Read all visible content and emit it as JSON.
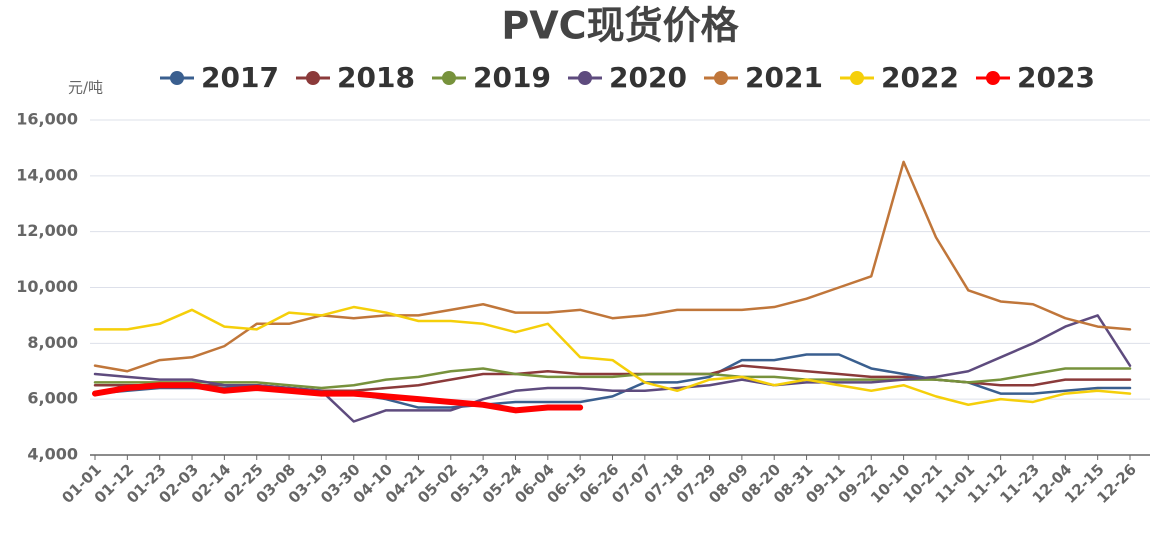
{
  "chart_data": {
    "type": "line",
    "title": "PVC现货价格",
    "y_label": "元/吨",
    "categories": [
      "01-01",
      "01-12",
      "01-23",
      "02-03",
      "02-14",
      "02-25",
      "03-08",
      "03-19",
      "03-30",
      "04-10",
      "04-21",
      "05-02",
      "05-13",
      "05-24",
      "06-04",
      "06-15",
      "06-26",
      "07-07",
      "07-18",
      "07-29",
      "08-09",
      "08-20",
      "08-31",
      "09-11",
      "09-22",
      "10-10",
      "10-21",
      "11-01",
      "11-12",
      "11-23",
      "12-04",
      "12-15",
      "12-26"
    ],
    "series": [
      {
        "name": "2017",
        "color": "#3a5f8f",
        "values": [
          6200,
          6300,
          6400,
          6400,
          6400,
          6500,
          6400,
          6300,
          6200,
          6000,
          5700,
          5700,
          5800,
          5900,
          5900,
          5900,
          6100,
          6600,
          6600,
          6800,
          7400,
          7400,
          7600,
          7600,
          7100,
          6900,
          6700,
          6600,
          6200,
          6200,
          6300,
          6400,
          6400
        ]
      },
      {
        "name": "2018",
        "color": "#8b3a3a",
        "values": [
          6500,
          6500,
          6500,
          6500,
          6500,
          6500,
          6400,
          6300,
          6300,
          6400,
          6500,
          6700,
          6900,
          6900,
          7000,
          6900,
          6900,
          6900,
          6900,
          6900,
          7200,
          7100,
          7000,
          6900,
          6800,
          6800,
          6700,
          6600,
          6500,
          6500,
          6700,
          6700,
          6700
        ]
      },
      {
        "name": "2019",
        "color": "#77923c",
        "values": [
          6600,
          6600,
          6600,
          6600,
          6600,
          6600,
          6500,
          6400,
          6500,
          6700,
          6800,
          7000,
          7100,
          6900,
          6800,
          6800,
          6800,
          6900,
          6900,
          6900,
          6800,
          6800,
          6700,
          6700,
          6700,
          6700,
          6700,
          6600,
          6700,
          6900,
          7100,
          7100,
          7100
        ]
      },
      {
        "name": "2020",
        "color": "#5e4b7e",
        "values": [
          6900,
          6800,
          6700,
          6700,
          6500,
          6500,
          6400,
          6300,
          5200,
          5600,
          5600,
          5600,
          6000,
          6300,
          6400,
          6400,
          6300,
          6300,
          6400,
          6500,
          6700,
          6500,
          6600,
          6600,
          6600,
          6700,
          6800,
          7000,
          7500,
          8000,
          8600,
          9000,
          7200
        ]
      },
      {
        "name": "2021",
        "color": "#c0763a",
        "values": [
          7200,
          7000,
          7400,
          7500,
          7900,
          8700,
          8700,
          9000,
          8900,
          9000,
          9000,
          9200,
          9400,
          9100,
          9100,
          9200,
          8900,
          9000,
          9200,
          9200,
          9200,
          9300,
          9600,
          10000,
          10400,
          14500,
          11800,
          9900,
          9500,
          9400,
          8900,
          8600,
          8500
        ]
      },
      {
        "name": "2022",
        "color": "#f5cf0a",
        "values": [
          8500,
          8500,
          8700,
          9200,
          8600,
          8500,
          9100,
          9000,
          9300,
          9100,
          8800,
          8800,
          8700,
          8400,
          8700,
          7500,
          7400,
          6600,
          6300,
          6700,
          6800,
          6500,
          6700,
          6500,
          6300,
          6500,
          6100,
          5800,
          6000,
          5900,
          6200,
          6300,
          6200
        ]
      },
      {
        "name": "2023",
        "color": "#ff0000",
        "values": [
          6200,
          6400,
          6500,
          6500,
          6300,
          6400,
          6300,
          6200,
          6200,
          6100,
          6000,
          5900,
          5800,
          5600,
          5700,
          5700,
          null,
          null,
          null,
          null,
          null,
          null,
          null,
          null,
          null,
          null,
          null,
          null,
          null,
          null,
          null,
          null,
          null
        ]
      }
    ],
    "ylim": [
      4000,
      16000
    ],
    "yticks": [
      {
        "value": 4000,
        "label": "4,000"
      },
      {
        "value": 6000,
        "label": "6,000"
      },
      {
        "value": 8000,
        "label": "8,000"
      },
      {
        "value": 10000,
        "label": "10,000"
      },
      {
        "value": 12000,
        "label": "12,000"
      },
      {
        "value": 14000,
        "label": "14,000"
      },
      {
        "value": 16000,
        "label": "16,000"
      }
    ],
    "grid": true,
    "legend": "top"
  }
}
